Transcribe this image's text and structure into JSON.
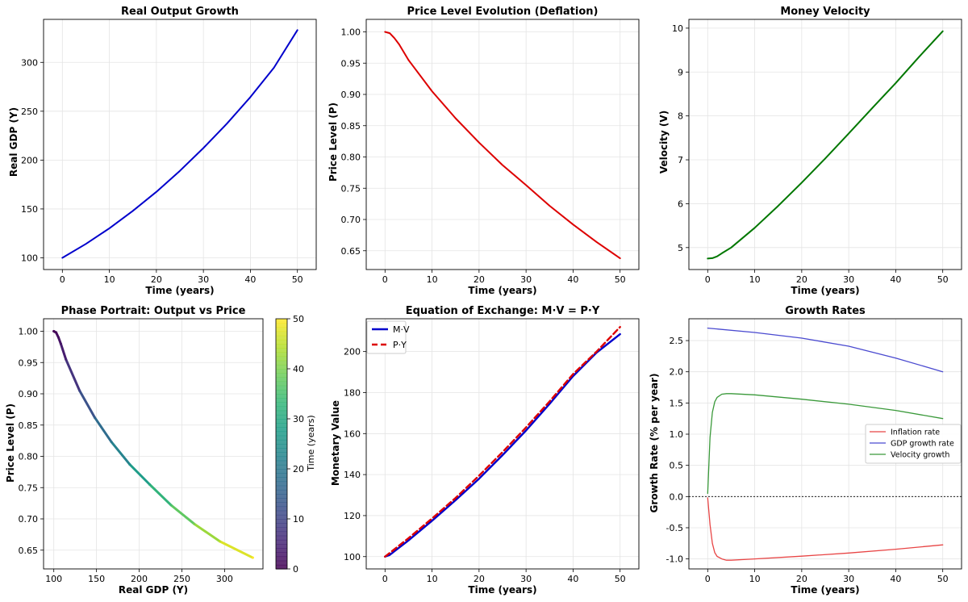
{
  "chart_data": [
    {
      "id": "output",
      "type": "line",
      "title": "Real Output Growth",
      "xlabel": "Time (years)",
      "ylabel": "Real GDP (Y)",
      "xlim": [
        -4,
        54
      ],
      "ylim": [
        88,
        344
      ],
      "xticks": [
        0,
        10,
        20,
        30,
        40,
        50
      ],
      "yticks": [
        100,
        150,
        200,
        250,
        300
      ],
      "ytick_decimals": 0,
      "grid": true,
      "series": [
        {
          "name": "Real GDP",
          "color": "#0000cc",
          "width": 2,
          "dash": "",
          "x": [
            0,
            5,
            10,
            15,
            20,
            25,
            30,
            35,
            40,
            45,
            50
          ],
          "y": [
            100,
            114.2,
            130.2,
            148,
            167.5,
            189,
            212.3,
            237.3,
            264.5,
            294.5,
            333
          ]
        }
      ]
    },
    {
      "id": "price",
      "type": "line",
      "title": "Price Level Evolution (Deflation)",
      "xlabel": "Time (years)",
      "ylabel": "Price Level (P)",
      "xlim": [
        -4,
        54
      ],
      "ylim": [
        0.62,
        1.02
      ],
      "xticks": [
        0,
        10,
        20,
        30,
        40,
        50
      ],
      "yticks": [
        0.65,
        0.7,
        0.75,
        0.8,
        0.85,
        0.9,
        0.95,
        1.0
      ],
      "ytick_decimals": 2,
      "grid": true,
      "series": [
        {
          "name": "Price Level",
          "color": "#dd0000",
          "width": 2,
          "dash": "",
          "x": [
            0,
            1,
            2,
            3,
            5,
            10,
            15,
            20,
            25,
            30,
            35,
            40,
            45,
            50
          ],
          "y": [
            1.0,
            0.998,
            0.99,
            0.98,
            0.955,
            0.905,
            0.862,
            0.823,
            0.787,
            0.755,
            0.722,
            0.692,
            0.664,
            0.638
          ]
        }
      ]
    },
    {
      "id": "velocity",
      "type": "line",
      "title": "Money Velocity",
      "xlabel": "Time (years)",
      "ylabel": "Velocity (V)",
      "xlim": [
        -4,
        54
      ],
      "ylim": [
        4.5,
        10.2
      ],
      "xticks": [
        0,
        10,
        20,
        30,
        40,
        50
      ],
      "yticks": [
        5,
        6,
        7,
        8,
        9,
        10
      ],
      "ytick_decimals": 0,
      "grid": true,
      "series": [
        {
          "name": "Velocity",
          "color": "#007700",
          "width": 2,
          "dash": "",
          "x": [
            0,
            1,
            2,
            3,
            5,
            10,
            15,
            20,
            25,
            30,
            35,
            40,
            45,
            50
          ],
          "y": [
            4.75,
            4.76,
            4.8,
            4.87,
            5.0,
            5.45,
            5.95,
            6.48,
            7.03,
            7.6,
            8.18,
            8.75,
            9.35,
            9.93
          ]
        }
      ]
    },
    {
      "id": "phase",
      "type": "scatter",
      "title": "Phase Portrait: Output vs Price",
      "xlabel": "Real GDP (Y)",
      "ylabel": "Price Level (P)",
      "xlim": [
        88,
        345
      ],
      "ylim": [
        0.62,
        1.02
      ],
      "xticks": [
        100,
        150,
        200,
        250,
        300
      ],
      "yticks": [
        0.65,
        0.7,
        0.75,
        0.8,
        0.85,
        0.9,
        0.95,
        1.0
      ],
      "xtick_decimals": 0,
      "ytick_decimals": 2,
      "grid": true,
      "colormap": "viridis",
      "colorbar": {
        "label": "Time (years)",
        "range": [
          0,
          50
        ],
        "ticks": [
          0,
          10,
          20,
          30,
          40,
          50
        ]
      },
      "points": {
        "t": [
          0,
          1,
          2,
          3,
          5,
          10,
          15,
          20,
          25,
          30,
          35,
          40,
          45,
          50
        ],
        "x": [
          100,
          102.7,
          105.5,
          108.2,
          114.2,
          130.2,
          148,
          167.5,
          189,
          212.3,
          237.3,
          264.5,
          294.5,
          333
        ],
        "y": [
          1.0,
          0.998,
          0.99,
          0.98,
          0.955,
          0.905,
          0.862,
          0.823,
          0.787,
          0.755,
          0.722,
          0.692,
          0.664,
          0.638
        ]
      }
    },
    {
      "id": "exchange",
      "type": "line",
      "title": "Equation of Exchange: M·V = P·Y",
      "xlabel": "Time (years)",
      "ylabel": "Monetary Value",
      "xlim": [
        -4,
        54
      ],
      "ylim": [
        94,
        216
      ],
      "xticks": [
        0,
        10,
        20,
        30,
        40,
        50
      ],
      "yticks": [
        100,
        120,
        140,
        160,
        180,
        200
      ],
      "ytick_decimals": 0,
      "grid": true,
      "legend": "top-left",
      "series": [
        {
          "name": "M·V",
          "color": "#0000cc",
          "width": 2.4,
          "dash": "",
          "x": [
            0,
            1,
            2,
            5,
            10,
            15,
            20,
            25,
            30,
            35,
            40,
            45,
            50
          ],
          "y": [
            100,
            100.8,
            102.6,
            107.9,
            117.5,
            127.5,
            138,
            149.5,
            161.5,
            174.5,
            188,
            199.5,
            208.5
          ]
        },
        {
          "name": "P·Y",
          "color": "#dd0000",
          "width": 2.4,
          "dash": "7,4",
          "x": [
            0,
            5,
            10,
            15,
            20,
            25,
            30,
            35,
            40,
            45,
            50
          ],
          "y": [
            100,
            109,
            118.6,
            128.6,
            139.5,
            151,
            163,
            175.7,
            189,
            200,
            212
          ]
        }
      ]
    },
    {
      "id": "growth",
      "type": "line",
      "title": "Growth Rates",
      "xlabel": "Time (years)",
      "ylabel": "Growth Rate (% per year)",
      "xlim": [
        -4,
        54
      ],
      "ylim": [
        -1.16,
        2.85
      ],
      "xticks": [
        0,
        10,
        20,
        30,
        40,
        50
      ],
      "yticks": [
        -1.0,
        -0.5,
        0.0,
        0.5,
        1.0,
        1.5,
        2.0,
        2.5
      ],
      "ytick_decimals": 1,
      "grid": true,
      "legend": "center-right",
      "hline": {
        "y": 0,
        "color": "#000000",
        "dash": "2,2"
      },
      "series": [
        {
          "name": "Inflation rate",
          "color": "#e84545",
          "width": 1.3,
          "dash": "",
          "x": [
            0,
            0.5,
            1,
            1.5,
            2,
            3,
            4,
            5,
            10,
            20,
            30,
            40,
            50
          ],
          "y": [
            -0.02,
            -0.45,
            -0.75,
            -0.9,
            -0.96,
            -1.0,
            -1.02,
            -1.02,
            -1.0,
            -0.955,
            -0.905,
            -0.845,
            -0.775
          ]
        },
        {
          "name": "GDP growth rate",
          "color": "#4a4ad0",
          "width": 1.3,
          "dash": "",
          "x": [
            0,
            10,
            20,
            30,
            40,
            50
          ],
          "y": [
            2.7,
            2.63,
            2.54,
            2.41,
            2.22,
            2.0
          ]
        },
        {
          "name": "Velocity growth",
          "color": "#3a993a",
          "width": 1.3,
          "dash": "",
          "x": [
            0,
            0.5,
            1,
            1.5,
            2,
            3,
            4,
            5,
            10,
            20,
            30,
            40,
            50
          ],
          "y": [
            0.05,
            0.95,
            1.35,
            1.52,
            1.59,
            1.64,
            1.65,
            1.65,
            1.63,
            1.56,
            1.48,
            1.38,
            1.25
          ]
        }
      ]
    }
  ]
}
